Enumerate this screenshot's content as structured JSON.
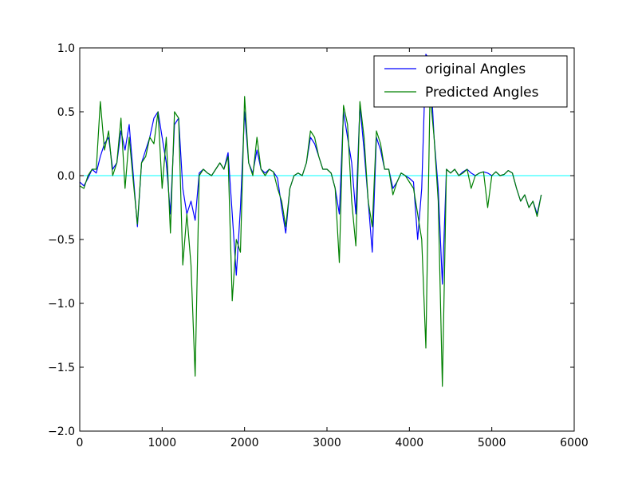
{
  "chart_data": {
    "type": "line",
    "title": "",
    "xlabel": "",
    "ylabel": "",
    "xlim": [
      0,
      6000
    ],
    "ylim": [
      -2.0,
      1.0
    ],
    "x_ticks": [
      0,
      1000,
      2000,
      3000,
      4000,
      5000,
      6000
    ],
    "y_ticks": [
      -2.0,
      -1.5,
      -1.0,
      -0.5,
      0.0,
      0.5,
      1.0
    ],
    "x_tick_labels": [
      "0",
      "1000",
      "2000",
      "3000",
      "4000",
      "5000",
      "6000"
    ],
    "y_tick_labels": [
      "−2.0",
      "−1.5",
      "−1.0",
      "−0.5",
      "0.0",
      "0.5",
      "1.0"
    ],
    "grid": false,
    "legend_position": "top-right",
    "reference_line": {
      "y": 0.0,
      "color": "#00ffff"
    },
    "series": [
      {
        "name": "original Angles",
        "color": "#0000ff",
        "x": [
          0,
          50,
          100,
          150,
          200,
          250,
          300,
          350,
          400,
          450,
          500,
          550,
          600,
          650,
          700,
          750,
          800,
          850,
          900,
          950,
          1000,
          1050,
          1100,
          1150,
          1200,
          1250,
          1300,
          1350,
          1400,
          1450,
          1500,
          1550,
          1600,
          1650,
          1700,
          1750,
          1800,
          1850,
          1900,
          1950,
          2000,
          2050,
          2100,
          2150,
          2200,
          2250,
          2300,
          2350,
          2400,
          2450,
          2500,
          2550,
          2600,
          2650,
          2700,
          2750,
          2800,
          2850,
          2900,
          2950,
          3000,
          3050,
          3100,
          3150,
          3200,
          3250,
          3300,
          3350,
          3400,
          3450,
          3500,
          3550,
          3600,
          3650,
          3700,
          3750,
          3800,
          3850,
          3900,
          3950,
          4000,
          4050,
          4100,
          4150,
          4200,
          4250,
          4300,
          4350,
          4400,
          4450,
          4500,
          4550,
          4600,
          4650,
          4700,
          4750,
          4800,
          4850,
          4900,
          4950,
          5000,
          5050,
          5100,
          5150,
          5200,
          5250,
          5300,
          5350,
          5400,
          5450,
          5500,
          5550,
          5600
        ],
        "y": [
          -0.05,
          -0.08,
          -0.02,
          0.05,
          0.02,
          0.15,
          0.25,
          0.3,
          0.05,
          0.1,
          0.35,
          0.2,
          0.4,
          0.0,
          -0.4,
          0.1,
          0.2,
          0.3,
          0.45,
          0.5,
          0.3,
          0.1,
          -0.3,
          0.4,
          0.45,
          -0.1,
          -0.3,
          -0.2,
          -0.35,
          0.02,
          0.05,
          0.02,
          0.0,
          0.05,
          0.1,
          0.05,
          0.18,
          -0.3,
          -0.78,
          -0.25,
          0.5,
          0.1,
          0.02,
          0.2,
          0.05,
          0.02,
          0.05,
          0.03,
          -0.02,
          -0.25,
          -0.45,
          -0.1,
          0.0,
          0.02,
          0.0,
          0.1,
          0.3,
          0.25,
          0.15,
          0.05,
          0.05,
          0.02,
          -0.1,
          -0.3,
          0.5,
          0.3,
          0.1,
          -0.3,
          0.55,
          0.2,
          -0.2,
          -0.6,
          0.3,
          0.2,
          0.05,
          0.05,
          -0.1,
          -0.05,
          0.02,
          0.0,
          -0.02,
          -0.05,
          -0.5,
          -0.1,
          0.95,
          0.9,
          0.3,
          -0.1,
          -0.85,
          0.05,
          0.02,
          0.05,
          0.0,
          0.03,
          0.05,
          0.02,
          0.0,
          0.02,
          0.03,
          0.02,
          0.0,
          0.03,
          0.0,
          0.01,
          0.04,
          0.02,
          -0.1,
          -0.2,
          -0.15,
          -0.25,
          -0.2,
          -0.3,
          -0.15
        ]
      },
      {
        "name": "Predicted Angles",
        "color": "#008000",
        "x": [
          0,
          50,
          100,
          150,
          200,
          250,
          300,
          350,
          400,
          450,
          500,
          550,
          600,
          650,
          700,
          750,
          800,
          850,
          900,
          950,
          1000,
          1050,
          1100,
          1150,
          1200,
          1250,
          1300,
          1350,
          1400,
          1450,
          1500,
          1550,
          1600,
          1650,
          1700,
          1750,
          1800,
          1850,
          1900,
          1950,
          2000,
          2050,
          2100,
          2150,
          2200,
          2250,
          2300,
          2350,
          2400,
          2450,
          2500,
          2550,
          2600,
          2650,
          2700,
          2750,
          2800,
          2850,
          2900,
          2950,
          3000,
          3050,
          3100,
          3150,
          3200,
          3250,
          3300,
          3350,
          3400,
          3450,
          3500,
          3550,
          3600,
          3650,
          3700,
          3750,
          3800,
          3850,
          3900,
          3950,
          4000,
          4050,
          4100,
          4150,
          4200,
          4250,
          4300,
          4350,
          4400,
          4450,
          4500,
          4550,
          4600,
          4650,
          4700,
          4750,
          4800,
          4850,
          4900,
          4950,
          5000,
          5050,
          5100,
          5150,
          5200,
          5250,
          5300,
          5350,
          5400,
          5450,
          5500,
          5550,
          5600
        ],
        "y": [
          -0.08,
          -0.1,
          0.0,
          0.05,
          0.05,
          0.58,
          0.2,
          0.35,
          0.0,
          0.1,
          0.45,
          -0.1,
          0.3,
          -0.05,
          -0.38,
          0.1,
          0.15,
          0.3,
          0.25,
          0.5,
          -0.1,
          0.3,
          -0.45,
          0.5,
          0.45,
          -0.7,
          -0.3,
          -0.7,
          -1.57,
          0.0,
          0.05,
          0.02,
          0.0,
          0.05,
          0.1,
          0.05,
          0.15,
          -0.98,
          -0.5,
          -0.6,
          0.62,
          0.1,
          0.0,
          0.3,
          0.05,
          0.0,
          0.05,
          0.03,
          -0.1,
          -0.2,
          -0.4,
          -0.1,
          0.0,
          0.02,
          0.0,
          0.1,
          0.35,
          0.3,
          0.15,
          0.05,
          0.05,
          0.02,
          -0.1,
          -0.68,
          0.55,
          0.4,
          -0.2,
          -0.55,
          0.58,
          0.3,
          -0.2,
          -0.4,
          0.35,
          0.25,
          0.05,
          0.05,
          -0.15,
          -0.05,
          0.02,
          0.0,
          -0.05,
          -0.1,
          -0.3,
          -0.5,
          -1.35,
          0.65,
          0.3,
          -0.2,
          -1.65,
          0.05,
          0.02,
          0.05,
          0.0,
          0.02,
          0.05,
          -0.1,
          0.0,
          0.02,
          0.03,
          -0.25,
          0.0,
          0.03,
          0.0,
          0.01,
          0.04,
          0.02,
          -0.1,
          -0.2,
          -0.15,
          -0.25,
          -0.2,
          -0.32,
          -0.15
        ]
      }
    ]
  }
}
